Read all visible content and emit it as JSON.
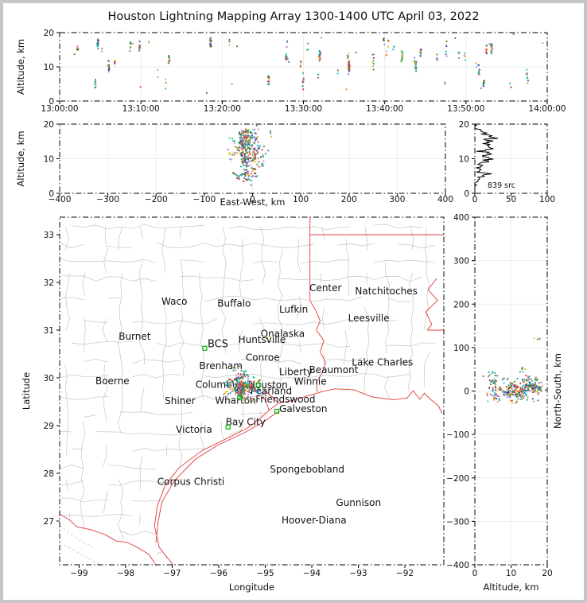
{
  "title": "Houston Lightning Mapping Array 1300-1400 UTC April 03, 2022",
  "source_count_label": "839 src",
  "colors": {
    "frame": "#000000",
    "grid": "#ededed",
    "county": "#c4c4c4",
    "border_red": "#e23b3b",
    "station_green": "#00b400",
    "text": "#111111",
    "city_text": "#262626",
    "platform_text": "#1515cc",
    "bcs_text": "#8b1a1a",
    "houston_text": "#ff8c00",
    "histogram_line": "#000000",
    "background": "#ffffff",
    "outer_border": "#c6c6c6"
  },
  "palette": [
    "#d62728",
    "#ff7f0e",
    "#e0c000",
    "#2ca02c",
    "#00b27a",
    "#17becf",
    "#1f77b4",
    "#2233cc",
    "#9467bd",
    "#e377c2",
    "#8c564b",
    "#556600"
  ],
  "projection": {
    "ref_lon": -95.36,
    "ref_lat": 29.76,
    "km_per_deg_lon": 96.6,
    "km_per_deg_lat": 111.2
  },
  "scatter_gen": {
    "seed": 20220403,
    "bursts": 48,
    "approx_total_points": 839,
    "ew_center": -10,
    "ew_sigma": 30,
    "ns_center": 8,
    "ns_sigma": 34,
    "alt_min": 0.8,
    "alt_max": 20,
    "outlier": {
      "t": 1250,
      "ew": 38,
      "ns": 122,
      "alt": 17.2
    }
  },
  "chart_data": [
    {
      "id": "time_altitude",
      "type": "scatter",
      "xlabel": "",
      "ylabel": "Altitude, km",
      "xtick_labels": [
        "13:00:00",
        "13:10:00",
        "13:20:00",
        "13:30:00",
        "13:40:00",
        "13:50:00",
        "14:00:00"
      ],
      "xtick_seconds": [
        0,
        600,
        1200,
        1800,
        2400,
        3000,
        3600
      ],
      "ylim": [
        0,
        20
      ],
      "ytick_vals": [
        0,
        10,
        20
      ],
      "ytick_labels": [
        "0",
        "10",
        "20"
      ],
      "description": "VHF lightning sources vs time; ~48 small bursts spread through the hour, altitudes 1-20 km, multicolored points"
    },
    {
      "id": "eastwest_altitude",
      "type": "scatter",
      "xlabel": "East-West, km",
      "ylabel": "Altitude, km",
      "xlim": [
        -400,
        400
      ],
      "xtick_vals": [
        -400,
        -300,
        -200,
        -100,
        0,
        100,
        200,
        300,
        400
      ],
      "xtick_labels": [
        "−400",
        "−300",
        "−200",
        "−100",
        "0",
        "100",
        "200",
        "300",
        "400"
      ],
      "ylim": [
        0,
        20
      ],
      "ytick_vals": [
        0,
        10,
        20
      ],
      "ytick_labels": [
        "0",
        "10",
        "20"
      ],
      "cluster": {
        "center_km": -10,
        "sigma_km": 30,
        "range_km": [
          -65,
          48
        ],
        "alt_range_km": [
          3,
          20
        ]
      }
    },
    {
      "id": "altitude_source_histogram",
      "type": "line",
      "xlabel": "",
      "xlim": [
        0,
        100
      ],
      "xtick_vals": [
        0,
        50,
        100
      ],
      "xtick_labels": [
        "0",
        "50",
        "100"
      ],
      "ylim": [
        0,
        20
      ],
      "ytick_vals": [
        0,
        10,
        20
      ],
      "ytick_labels": [
        "20",
        "10",
        "0"
      ],
      "annotation": "839 src",
      "description": "jagged black altitude profile of source counts; counts mostly 3-25 per bin, broad maximum 10-18 km"
    },
    {
      "id": "map_plan_view",
      "type": "scatter",
      "xlabel": "Longitude",
      "ylabel": "Latitude",
      "xlim": [
        -99.42,
        -91.16
      ],
      "ylim": [
        26.08,
        33.37
      ],
      "xtick_vals": [
        -99,
        -98,
        -97,
        -96,
        -95,
        -94,
        -93,
        -92
      ],
      "xtick_labels": [
        "−99",
        "−98",
        "−97",
        "−96",
        "−95",
        "−94",
        "−93",
        "−92"
      ],
      "ytick_vals": [
        33,
        32,
        31,
        30,
        29,
        28,
        27
      ],
      "ytick_labels": [
        "33",
        "32",
        "31",
        "30",
        "29",
        "28",
        "27"
      ],
      "cluster": {
        "center_lon": -95.46,
        "center_lat": 29.85,
        "lon_range": [
          -96.05,
          -94.9
        ],
        "lat_range": [
          29.25,
          30.35
        ]
      },
      "cities": [
        {
          "name": "Waco",
          "lon": -97.23,
          "lat": 31.53
        },
        {
          "name": "Buffalo",
          "lon": -96.03,
          "lat": 31.49
        },
        {
          "name": "Lufkin",
          "lon": -94.7,
          "lat": 31.37
        },
        {
          "name": "Center",
          "lon": -94.05,
          "lat": 31.82
        },
        {
          "name": "Natchitoches",
          "lon": -93.07,
          "lat": 31.75
        },
        {
          "name": "Leesville",
          "lon": -93.22,
          "lat": 31.18
        },
        {
          "name": "Burnet",
          "lon": -98.15,
          "lat": 30.8
        },
        {
          "name": "Boerne",
          "lon": -98.65,
          "lat": 29.87
        },
        {
          "name": "Huntsville",
          "lon": -95.58,
          "lat": 30.73
        },
        {
          "name": "Onalaska",
          "lon": -95.1,
          "lat": 30.86
        },
        {
          "name": "BCS",
          "lon": -96.24,
          "lat": 30.64,
          "color": "bcs"
        },
        {
          "name": "Conroe",
          "lon": -95.42,
          "lat": 30.36
        },
        {
          "name": "Brenham",
          "lon": -96.42,
          "lat": 30.18
        },
        {
          "name": "Liberty",
          "lon": -94.7,
          "lat": 30.06
        },
        {
          "name": "Beaumont",
          "lon": -94.06,
          "lat": 30.1
        },
        {
          "name": "Lake Charles",
          "lon": -93.14,
          "lat": 30.26
        },
        {
          "name": "Columbus",
          "lon": -96.5,
          "lat": 29.79
        },
        {
          "name": "Houston",
          "lon": -95.37,
          "lat": 29.78,
          "color": "houston"
        },
        {
          "name": "Winnie",
          "lon": -94.38,
          "lat": 29.86
        },
        {
          "name": "Pearland",
          "lon": -95.32,
          "lat": 29.66
        },
        {
          "name": "Friendswood",
          "lon": -95.21,
          "lat": 29.48
        },
        {
          "name": "Galveston",
          "lon": -94.7,
          "lat": 29.28
        },
        {
          "name": "Wharton",
          "lon": -96.08,
          "lat": 29.46
        },
        {
          "name": "Bay City",
          "lon": -95.85,
          "lat": 29.01
        },
        {
          "name": "Shiner",
          "lon": -97.16,
          "lat": 29.45
        },
        {
          "name": "Victoria",
          "lon": -96.92,
          "lat": 28.85
        },
        {
          "name": "Corpus Christi",
          "lon": -97.32,
          "lat": 27.76
        }
      ],
      "platform_labels": [
        {
          "name": "Spongebobland",
          "lon": -94.9,
          "lat": 28.02
        },
        {
          "name": "Gunnison",
          "lon": -93.48,
          "lat": 27.32
        },
        {
          "name": "Hoover-Diana",
          "lon": -94.65,
          "lat": 26.95
        }
      ],
      "stations": [
        {
          "lon": -96.3,
          "lat": 30.62
        },
        {
          "lon": -95.8,
          "lat": 28.97
        },
        {
          "lon": -94.75,
          "lat": 29.3
        },
        {
          "lon": -95.55,
          "lat": 29.58
        },
        {
          "lon": -95.15,
          "lat": 29.85
        }
      ],
      "borders_red": [
        [
          [
            -94.04,
            33.37
          ],
          [
            -94.04,
            31.62
          ],
          [
            -93.92,
            31.42
          ],
          [
            -93.82,
            31.2
          ],
          [
            -93.9,
            31.0
          ],
          [
            -93.74,
            30.78
          ],
          [
            -93.82,
            30.55
          ],
          [
            -93.7,
            30.32
          ],
          [
            -93.78,
            30.1
          ],
          [
            -93.9,
            29.9
          ],
          [
            -93.88,
            29.7
          ]
        ],
        [
          [
            -94.04,
            33.0
          ],
          [
            -91.16,
            33.0
          ]
        ],
        [
          [
            -91.32,
            32.08
          ],
          [
            -91.5,
            31.85
          ],
          [
            -91.3,
            31.62
          ],
          [
            -91.55,
            31.38
          ],
          [
            -91.42,
            31.12
          ],
          [
            -91.52,
            31.0
          ]
        ],
        [
          [
            -91.52,
            31.0
          ],
          [
            -91.16,
            31.0
          ]
        ]
      ],
      "coast_red": [
        [
          -91.2,
          29.25
        ],
        [
          -91.28,
          29.42
        ],
        [
          -91.45,
          29.55
        ],
        [
          -91.58,
          29.68
        ],
        [
          -91.68,
          29.55
        ],
        [
          -91.82,
          29.73
        ],
        [
          -91.95,
          29.58
        ],
        [
          -92.25,
          29.54
        ],
        [
          -92.7,
          29.6
        ],
        [
          -93.1,
          29.75
        ],
        [
          -93.5,
          29.77
        ],
        [
          -93.75,
          29.72
        ],
        [
          -93.88,
          29.68
        ],
        [
          -94.1,
          29.62
        ],
        [
          -94.45,
          29.52
        ],
        [
          -94.72,
          29.47
        ],
        [
          -94.92,
          29.32
        ],
        [
          -95.12,
          29.14
        ],
        [
          -95.38,
          28.95
        ],
        [
          -95.85,
          28.72
        ],
        [
          -96.35,
          28.48
        ],
        [
          -96.85,
          28.12
        ],
        [
          -97.15,
          27.75
        ],
        [
          -97.32,
          27.32
        ],
        [
          -97.38,
          26.9
        ],
        [
          -97.28,
          26.45
        ],
        [
          -96.98,
          26.08
        ]
      ],
      "galveston_bay_red": [
        [
          -94.72,
          29.47
        ],
        [
          -94.85,
          29.6
        ],
        [
          -95.0,
          29.72
        ],
        [
          -95.08,
          29.62
        ],
        [
          -94.98,
          29.5
        ],
        [
          -94.92,
          29.32
        ]
      ],
      "barrier_islands_red": [
        [
          -97.35,
          26.55
        ],
        [
          -97.3,
          27.0
        ],
        [
          -97.22,
          27.4
        ],
        [
          -96.95,
          27.85
        ],
        [
          -96.5,
          28.3
        ],
        [
          -96.0,
          28.6
        ],
        [
          -95.45,
          28.85
        ],
        [
          -95.0,
          29.1
        ],
        [
          -94.72,
          29.3
        ]
      ],
      "rio_grande_red": [
        [
          -99.42,
          27.15
        ],
        [
          -99.2,
          27.02
        ],
        [
          -99.05,
          26.88
        ],
        [
          -98.75,
          26.82
        ],
        [
          -98.45,
          26.72
        ],
        [
          -98.2,
          26.58
        ],
        [
          -97.95,
          26.55
        ],
        [
          -97.7,
          26.42
        ],
        [
          -97.5,
          26.3
        ],
        [
          -97.35,
          26.08
        ]
      ],
      "mexico_gray": [
        [
          [
            -99.42,
            26.9
          ],
          [
            -99.0,
            26.6
          ],
          [
            -98.7,
            26.45
          ]
        ],
        [
          [
            -99.42,
            26.55
          ],
          [
            -98.95,
            26.3
          ],
          [
            -98.55,
            26.08
          ]
        ]
      ],
      "land_clip": [
        [
          -99.42,
          33.37
        ],
        [
          -91.16,
          33.37
        ],
        [
          -91.16,
          29.25
        ],
        [
          -91.28,
          29.42
        ],
        [
          -91.58,
          29.68
        ],
        [
          -91.82,
          29.73
        ],
        [
          -92.25,
          29.54
        ],
        [
          -92.7,
          29.6
        ],
        [
          -93.1,
          29.75
        ],
        [
          -93.5,
          29.77
        ],
        [
          -93.88,
          29.68
        ],
        [
          -94.45,
          29.52
        ],
        [
          -94.72,
          29.47
        ],
        [
          -94.92,
          29.32
        ],
        [
          -95.38,
          28.95
        ],
        [
          -96.35,
          28.48
        ],
        [
          -96.85,
          28.12
        ],
        [
          -97.15,
          27.75
        ],
        [
          -97.32,
          27.32
        ],
        [
          -97.38,
          26.9
        ],
        [
          -97.28,
          26.45
        ],
        [
          -96.98,
          26.08
        ],
        [
          -97.35,
          26.08
        ],
        [
          -97.5,
          26.3
        ],
        [
          -97.95,
          26.55
        ],
        [
          -98.45,
          26.72
        ],
        [
          -99.05,
          26.88
        ],
        [
          -99.42,
          27.15
        ]
      ]
    },
    {
      "id": "altitude_northsouth",
      "type": "scatter",
      "xlabel": "Altitude, km",
      "ylabel": "North-South, km",
      "xlim": [
        0,
        20
      ],
      "xtick_vals": [
        0,
        10,
        20
      ],
      "xtick_labels": [
        "0",
        "10",
        "20"
      ],
      "ylim": [
        -400,
        400
      ],
      "ytick_vals": [
        400,
        300,
        200,
        100,
        0,
        -100,
        -200,
        -300,
        -400
      ],
      "ytick_labels": [
        "400",
        "300",
        "200",
        "100",
        "0",
        "−100",
        "−200",
        "−300",
        "−400"
      ],
      "cluster": {
        "center_km": 8,
        "sigma_km": 34,
        "range_km": [
          -72,
          125
        ]
      }
    }
  ]
}
